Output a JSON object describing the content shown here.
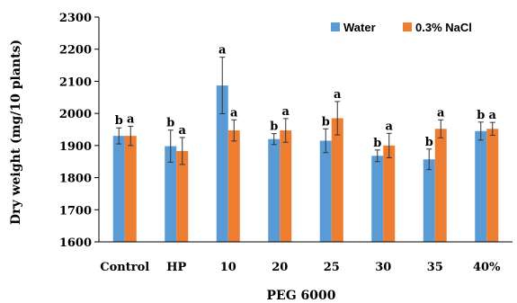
{
  "chart_data": {
    "type": "bar",
    "xlabel": "PEG 6000",
    "ylabel": "Dry weight (mg/10 plants)",
    "ylim": [
      1600,
      2300
    ],
    "yticks": [
      1600,
      1700,
      1800,
      1900,
      2000,
      2100,
      2200,
      2300
    ],
    "categories": [
      "Control",
      "HP",
      "10",
      "20",
      "25",
      "30",
      "35",
      "40%"
    ],
    "series": [
      {
        "name": "Water",
        "color": "#5b9bd5",
        "values": [
          1930,
          1898,
          2087,
          1920,
          1915,
          1868,
          1857,
          1945
        ],
        "errors": [
          25,
          50,
          88,
          17,
          37,
          18,
          32,
          28
        ],
        "labels": [
          "b",
          "b",
          "a",
          "b",
          "b",
          "b",
          "b",
          "b"
        ]
      },
      {
        "name": "0.3% NaCl",
        "color": "#ed7d31",
        "values": [
          1930,
          1883,
          1947,
          1947,
          1985,
          1900,
          1952,
          1952
        ],
        "errors": [
          30,
          42,
          33,
          37,
          52,
          38,
          28,
          20
        ],
        "labels": [
          "a",
          "a",
          "a",
          "a",
          "a",
          "a",
          "a",
          "a"
        ]
      }
    ],
    "legend": "top-right",
    "grid": false
  }
}
